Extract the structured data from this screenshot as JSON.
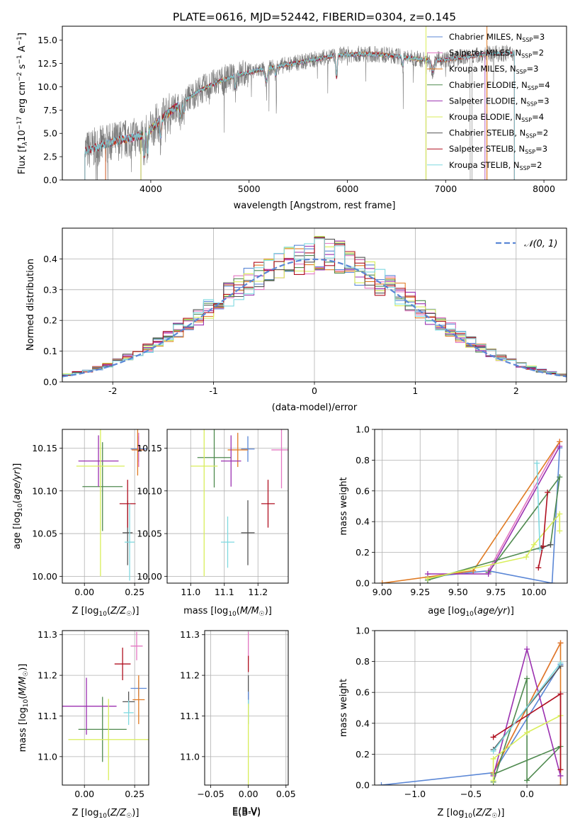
{
  "figure": {
    "title": "PLATE=0616, MJD=52442, FIBERID=0304, z=0.145"
  },
  "colors": {
    "chabrier_miles": "#5b87d6",
    "salpeter_miles": "#e377c2",
    "kroupa_miles": "#e07b24",
    "chabrier_elodie": "#4f8a4f",
    "salpeter_elodie": "#9b30b0",
    "kroupa_elodie": "#d9ee5a",
    "chabrier_stelib": "#555555",
    "salpeter_stelib": "#b01020",
    "kroupa_stelib": "#7fd9e0",
    "data_grey": "#7a7a7a",
    "grid": "#b0b0b0"
  },
  "chart_data": [
    {
      "type": "line",
      "panel": "spectrum",
      "xlabel": "wavelength [Angstrom, rest frame]",
      "ylabel": "Flux [f",
      "ylabel_sub": "λ",
      "ylabel_rest": "10",
      "ylabel_exp": "−17",
      "ylabel_units": " erg cm",
      "xlim": [
        3100,
        8230
      ],
      "ylim": [
        0,
        16.5
      ],
      "xticks": [
        4000,
        5000,
        6000,
        7000,
        8000
      ],
      "yticks": [
        0.0,
        2.5,
        5.0,
        7.5,
        10.0,
        12.5,
        15.0
      ],
      "legend": [
        {
          "key": "chabrier_miles",
          "name": "Chabrier MILES, N",
          "sub": "SSP",
          "val": "=3"
        },
        {
          "key": "salpeter_miles",
          "name": "Salpeter MILES, N",
          "sub": "SSP",
          "val": "=2"
        },
        {
          "key": "kroupa_miles",
          "name": "Kroupa MILES, N",
          "sub": "SSP",
          "val": "=3"
        },
        {
          "key": "chabrier_elodie",
          "name": "Chabrier ELODIE, N",
          "sub": "SSP",
          "val": "=4"
        },
        {
          "key": "salpeter_elodie",
          "name": "Salpeter ELODIE, N",
          "sub": "SSP",
          "val": "=3"
        },
        {
          "key": "kroupa_elodie",
          "name": "Kroupa ELODIE, N",
          "sub": "SSP",
          "val": "=4"
        },
        {
          "key": "chabrier_stelib",
          "name": "Chabrier STELIB, N",
          "sub": "SSP",
          "val": "=2"
        },
        {
          "key": "salpeter_stelib",
          "name": "Salpeter STELIB, N",
          "sub": "SSP",
          "val": "=3"
        },
        {
          "key": "kroupa_stelib",
          "name": "Kroupa STELIB, N",
          "sub": "SSP",
          "val": "=2"
        }
      ],
      "continuum": [
        [
          3350,
          3.2
        ],
        [
          3500,
          3.7
        ],
        [
          3650,
          4.2
        ],
        [
          3800,
          4.5
        ],
        [
          3950,
          4.9
        ],
        [
          4100,
          6.5
        ],
        [
          4300,
          8.2
        ],
        [
          4500,
          9.6
        ],
        [
          4700,
          10.6
        ],
        [
          4900,
          11.3
        ],
        [
          5100,
          11.8
        ],
        [
          5300,
          12.2
        ],
        [
          5500,
          12.6
        ],
        [
          5700,
          13.0
        ],
        [
          5900,
          13.4
        ],
        [
          6100,
          13.5
        ],
        [
          6300,
          13.5
        ],
        [
          6500,
          13.3
        ],
        [
          6700,
          13.0
        ],
        [
          6800,
          12.9
        ],
        [
          7000,
          12.9
        ],
        [
          7200,
          13.2
        ],
        [
          7400,
          13.5
        ],
        [
          7600,
          13.6
        ]
      ]
    },
    {
      "type": "bar",
      "panel": "residual-histogram",
      "xlabel": "(data-model)/error",
      "ylabel": "Normed distribution",
      "xlim": [
        -2.5,
        2.5
      ],
      "ylim": [
        0,
        0.5
      ],
      "xticks": [
        -2,
        -1,
        0,
        1,
        2
      ],
      "yticks": [
        0.0,
        0.1,
        0.2,
        0.3,
        0.4
      ],
      "legend": "𝒩(0, 1)",
      "bin_width": 0.1
    },
    {
      "type": "scatter",
      "panel": "age-vs-Z",
      "xlabel": "Z [log",
      "xlabel_rest": "(Z/Z",
      "ylabel": "age  [log",
      "ylabel_rest": "(age/yr)]",
      "xlim": [
        -0.11,
        0.32
      ],
      "ylim": [
        9.992,
        10.172
      ],
      "xticks": [
        0.0,
        0.25
      ],
      "xticklabels": [
        "0.00",
        "0.25"
      ],
      "yticks": [
        10.0,
        10.05,
        10.1,
        10.15
      ],
      "yticklabels": [
        "10.00",
        "10.05",
        "10.10",
        "10.15"
      ],
      "points": [
        {
          "key": "chabrier_miles",
          "x": 0.27,
          "y": 10.149,
          "xerr": 0.04,
          "yerr": 0.015
        },
        {
          "key": "salpeter_miles",
          "x": 0.27,
          "y": 10.148,
          "xerr": 0.03,
          "yerr": 0.02
        },
        {
          "key": "kroupa_miles",
          "x": 0.265,
          "y": 10.148,
          "xerr": 0.03,
          "yerr": 0.03
        },
        {
          "key": "chabrier_elodie",
          "x": 0.09,
          "y": 10.105,
          "xerr": 0.1,
          "yerr": 0.052
        },
        {
          "key": "salpeter_elodie",
          "x": 0.07,
          "y": 10.135,
          "xerr": 0.1,
          "yerr": 0.03
        },
        {
          "key": "kroupa_elodie",
          "x": 0.08,
          "y": 10.129,
          "xerr": 0.12,
          "yerr": 0.129
        },
        {
          "key": "chabrier_stelib",
          "x": 0.215,
          "y": 10.051,
          "xerr": 0.025,
          "yerr": 0.038
        },
        {
          "key": "salpeter_stelib",
          "x": 0.215,
          "y": 10.085,
          "xerr": 0.04,
          "yerr": 0.028
        },
        {
          "key": "kroupa_stelib",
          "x": 0.225,
          "y": 10.04,
          "xerr": 0.025,
          "yerr": 0.045
        }
      ]
    },
    {
      "type": "scatter",
      "panel": "age-vs-mass",
      "xlabel": "mass [log",
      "xlabel_rest": "(M/M",
      "xlim": [
        10.93,
        11.29
      ],
      "ylim": [
        9.992,
        10.172
      ],
      "xticks": [
        11.0,
        11.1,
        11.2
      ],
      "xticklabels": [
        "11.0",
        "11.1",
        "11.2"
      ],
      "yticks": [
        10.0,
        10.05,
        10.1,
        10.15
      ],
      "yticklabels": [
        "10.00",
        "10.05",
        "10.10",
        "10.15"
      ],
      "points": [
        {
          "key": "chabrier_miles",
          "x": 11.17,
          "y": 10.149,
          "xerr": 0.02,
          "yerr": 0.015
        },
        {
          "key": "salpeter_miles",
          "x": 11.27,
          "y": 10.148,
          "xerr": 0.03,
          "yerr": 0.045
        },
        {
          "key": "kroupa_miles",
          "x": 11.14,
          "y": 10.148,
          "xerr": 0.03,
          "yerr": 0.02
        },
        {
          "key": "chabrier_elodie",
          "x": 11.07,
          "y": 10.139,
          "xerr": 0.05,
          "yerr": 0.035
        },
        {
          "key": "salpeter_elodie",
          "x": 11.12,
          "y": 10.135,
          "xerr": 0.03,
          "yerr": 0.03
        },
        {
          "key": "kroupa_elodie",
          "x": 11.04,
          "y": 10.129,
          "xerr": 0.04,
          "yerr": 0.129
        },
        {
          "key": "chabrier_stelib",
          "x": 11.17,
          "y": 10.051,
          "xerr": 0.02,
          "yerr": 0.038
        },
        {
          "key": "salpeter_stelib",
          "x": 11.23,
          "y": 10.085,
          "xerr": 0.02,
          "yerr": 0.028
        },
        {
          "key": "kroupa_stelib",
          "x": 11.11,
          "y": 10.04,
          "xerr": 0.02,
          "yerr": 0.03
        }
      ]
    },
    {
      "type": "line",
      "panel": "mass-weight-vs-age",
      "xlabel": "age  [log",
      "xlabel_rest": "(age/yr)]",
      "ylabel": "mass weight",
      "xlim": [
        8.95,
        10.22
      ],
      "ylim": [
        0,
        1.0
      ],
      "xticks": [
        9.0,
        9.25,
        9.5,
        9.75,
        10.0
      ],
      "xticklabels": [
        "9.00",
        "9.25",
        "9.50",
        "9.75",
        "10.00"
      ],
      "yticks": [
        0.0,
        0.2,
        0.4,
        0.6,
        0.8,
        1.0
      ],
      "series": [
        {
          "key": "chabrier_miles",
          "points": [
            [
              9.3,
              0.04
            ],
            [
              9.7,
              0.08
            ],
            [
              10.12,
              0.0
            ],
            [
              10.17,
              0.88
            ]
          ]
        },
        {
          "key": "salpeter_miles",
          "points": [
            [
              9.7,
              0.08
            ],
            [
              10.17,
              0.92
            ]
          ]
        },
        {
          "key": "kroupa_miles",
          "points": [
            [
              9.0,
              0.0
            ],
            [
              9.6,
              0.08
            ],
            [
              10.17,
              0.92
            ]
          ]
        },
        {
          "key": "chabrier_elodie",
          "points": [
            [
              9.3,
              0.02
            ],
            [
              10.11,
              0.25
            ],
            [
              10.17,
              0.69
            ],
            [
              9.7,
              0.07
            ]
          ]
        },
        {
          "key": "salpeter_elodie",
          "points": [
            [
              9.3,
              0.06
            ],
            [
              9.7,
              0.06
            ],
            [
              10.17,
              0.89
            ]
          ]
        },
        {
          "key": "kroupa_elodie",
          "points": [
            [
              9.3,
              0.03
            ],
            [
              9.95,
              0.17
            ],
            [
              10.0,
              0.25
            ],
            [
              10.17,
              0.45
            ],
            [
              10.17,
              0.34
            ]
          ]
        },
        {
          "key": "chabrier_stelib",
          "points": [
            [
              10.05,
              0.23
            ],
            [
              10.11,
              0.25
            ]
          ]
        },
        {
          "key": "salpeter_stelib",
          "points": [
            [
              10.03,
              0.1
            ],
            [
              10.06,
              0.24
            ],
            [
              10.09,
              0.59
            ]
          ]
        },
        {
          "key": "kroupa_stelib",
          "points": [
            [
              10.02,
              0.78
            ],
            [
              10.04,
              0.22
            ]
          ]
        }
      ]
    },
    {
      "type": "scatter",
      "panel": "mass-vs-Z",
      "xlabel": "Z [log",
      "xlabel_rest": "(Z/Z",
      "ylabel": "mass [log",
      "ylabel_rest": "(M/M",
      "xlim": [
        -0.11,
        0.32
      ],
      "ylim": [
        10.93,
        11.31
      ],
      "xticks": [
        0.0,
        0.25
      ],
      "xticklabels": [
        "0.00",
        "0.25"
      ],
      "yticks": [
        11.0,
        11.1,
        11.2,
        11.3
      ],
      "yticklabels": [
        "11.0",
        "11.1",
        "11.2",
        "11.3"
      ],
      "points": [
        {
          "key": "chabrier_miles",
          "x": 0.27,
          "y": 11.168,
          "xerr": 0.04,
          "yerr": 0.02
        },
        {
          "key": "salpeter_miles",
          "x": 0.26,
          "y": 11.272,
          "xerr": 0.03,
          "yerr": 0.035
        },
        {
          "key": "kroupa_miles",
          "x": 0.27,
          "y": 11.14,
          "xerr": 0.03,
          "yerr": 0.06
        },
        {
          "key": "chabrier_elodie",
          "x": 0.09,
          "y": 11.067,
          "xerr": 0.12,
          "yerr": 0.08
        },
        {
          "key": "salpeter_elodie",
          "x": 0.01,
          "y": 11.124,
          "xerr": 0.15,
          "yerr": 0.07
        },
        {
          "key": "kroupa_elodie",
          "x": 0.12,
          "y": 11.042,
          "xerr": 0.2,
          "yerr": 0.1
        },
        {
          "key": "chabrier_stelib",
          "x": 0.22,
          "y": 11.135,
          "xerr": 0.03,
          "yerr": 0.025
        },
        {
          "key": "salpeter_stelib",
          "x": 0.19,
          "y": 11.228,
          "xerr": 0.04,
          "yerr": 0.04
        },
        {
          "key": "kroupa_stelib",
          "x": 0.22,
          "y": 11.108,
          "xerr": 0.025,
          "yerr": 0.03
        }
      ]
    },
    {
      "type": "scatter",
      "panel": "mass-vs-EBV",
      "xlabel": "E(B-V)",
      "xlim": [
        -0.058,
        0.053
      ],
      "ylim": [
        10.93,
        11.31
      ],
      "xticks": [
        -0.05,
        0.0,
        0.05
      ],
      "xticklabels": [
        "−0.05",
        "0.00",
        "0.05"
      ],
      "yticks": [
        11.0,
        11.1,
        11.2,
        11.3
      ],
      "yticklabels": [
        "11.0",
        "11.1",
        "11.2",
        "11.3"
      ],
      "points": [
        {
          "key": "salpeter_miles",
          "x": 0.0,
          "y": 11.272,
          "xerr": 0.0,
          "yerr": 0.035
        },
        {
          "key": "salpeter_stelib",
          "x": 0.0,
          "y": 11.228,
          "xerr": 0.0,
          "yerr": 0.02
        },
        {
          "key": "chabrier_stelib",
          "x": 0.0,
          "y": 11.16,
          "xerr": 0.0,
          "yerr": 0.04
        },
        {
          "key": "chabrier_miles",
          "x": 0.0,
          "y": 11.12,
          "xerr": 0.0,
          "yerr": 0.04
        },
        {
          "key": "kroupa_stelib",
          "x": 0.0,
          "y": 11.11,
          "xerr": 0.0,
          "yerr": 0.03
        },
        {
          "key": "kroupa_elodie",
          "x": 0.0,
          "y": 11.03,
          "xerr": 0.0,
          "yerr": 0.1
        }
      ]
    },
    {
      "type": "line",
      "panel": "mass-weight-vs-Z",
      "xlabel": "Z [log",
      "xlabel_rest": "(Z/Z",
      "ylabel": "mass weight",
      "xlim": [
        -1.36,
        0.36
      ],
      "ylim": [
        0,
        1.0
      ],
      "xticks": [
        -1.0,
        -0.5,
        0.0
      ],
      "xticklabels": [
        "−1.0",
        "−0.5",
        "0.0"
      ],
      "yticks": [
        0.0,
        0.2,
        0.4,
        0.6,
        0.8,
        1.0
      ],
      "series": [
        {
          "key": "chabrier_miles",
          "points": [
            [
              -1.3,
              0.0
            ],
            [
              -0.3,
              0.08
            ],
            [
              0.3,
              0.78
            ]
          ]
        },
        {
          "key": "salpeter_miles",
          "points": [
            [
              -0.3,
              0.08
            ],
            [
              0.3,
              0.92
            ]
          ]
        },
        {
          "key": "kroupa_miles",
          "points": [
            [
              -0.3,
              0.08
            ],
            [
              0.3,
              0.92
            ],
            [
              0.3,
              0.0
            ]
          ]
        },
        {
          "key": "chabrier_elodie",
          "points": [
            [
              -0.3,
              0.02
            ],
            [
              0.0,
              0.69
            ],
            [
              0.0,
              0.03
            ],
            [
              0.3,
              0.25
            ],
            [
              -0.3,
              0.07
            ]
          ]
        },
        {
          "key": "salpeter_elodie",
          "points": [
            [
              -0.3,
              0.06
            ],
            [
              0.0,
              0.88
            ],
            [
              0.3,
              0.06
            ]
          ]
        },
        {
          "key": "kroupa_elodie",
          "points": [
            [
              -0.3,
              0.03
            ],
            [
              -0.3,
              0.17
            ],
            [
              0.0,
              0.34
            ],
            [
              0.3,
              0.45
            ]
          ]
        },
        {
          "key": "chabrier_stelib",
          "points": [
            [
              -0.3,
              0.23
            ],
            [
              0.3,
              0.77
            ]
          ]
        },
        {
          "key": "salpeter_stelib",
          "points": [
            [
              -0.3,
              0.31
            ],
            [
              0.3,
              0.59
            ],
            [
              0.3,
              0.1
            ]
          ]
        },
        {
          "key": "kroupa_stelib",
          "points": [
            [
              -0.3,
              0.22
            ],
            [
              0.3,
              0.79
            ]
          ]
        }
      ]
    }
  ]
}
